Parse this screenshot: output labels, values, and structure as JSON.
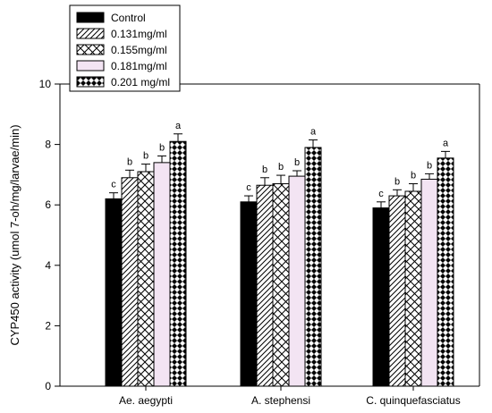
{
  "chart_data": {
    "type": "bar",
    "title": "",
    "xlabel": "",
    "ylabel": "CYP450 activity (umol 7-oh/mg/larvae/min)",
    "ylim": [
      0,
      10
    ],
    "yticks": [
      0,
      2,
      4,
      6,
      8,
      10
    ],
    "grid": false,
    "legend_position": "top-left",
    "categories": [
      "Ae. aegypti",
      "A. stephensi",
      "C. quinquefasciatus"
    ],
    "series": [
      {
        "name": "Control",
        "pattern": "solid-black",
        "values": [
          6.2,
          6.1,
          5.9
        ],
        "errors": [
          0.2,
          0.2,
          0.2
        ],
        "labels": [
          "c",
          "c",
          "c"
        ]
      },
      {
        "name": "0.131mg/ml",
        "pattern": "diagonal-lines",
        "values": [
          6.9,
          6.65,
          6.3
        ],
        "errors": [
          0.25,
          0.25,
          0.2
        ],
        "labels": [
          "b",
          "b",
          "b"
        ]
      },
      {
        "name": "0.155mg/ml",
        "pattern": "crosshatch",
        "values": [
          7.1,
          6.7,
          6.45
        ],
        "errors": [
          0.25,
          0.28,
          0.25
        ],
        "labels": [
          "b",
          "b",
          "b"
        ]
      },
      {
        "name": "0.181mg/ml",
        "pattern": "solid-pink",
        "values": [
          7.4,
          6.95,
          6.85
        ],
        "errors": [
          0.22,
          0.18,
          0.18
        ],
        "labels": [
          "b",
          "b",
          "b"
        ]
      },
      {
        "name": "0.201 mg/ml",
        "pattern": "diamonds",
        "values": [
          8.1,
          7.9,
          7.55
        ],
        "errors": [
          0.25,
          0.25,
          0.22
        ],
        "labels": [
          "a",
          "a",
          "a"
        ]
      }
    ],
    "colors": {
      "control": "#000000",
      "pink": "#f3e4f3",
      "outline": "#000000"
    }
  }
}
